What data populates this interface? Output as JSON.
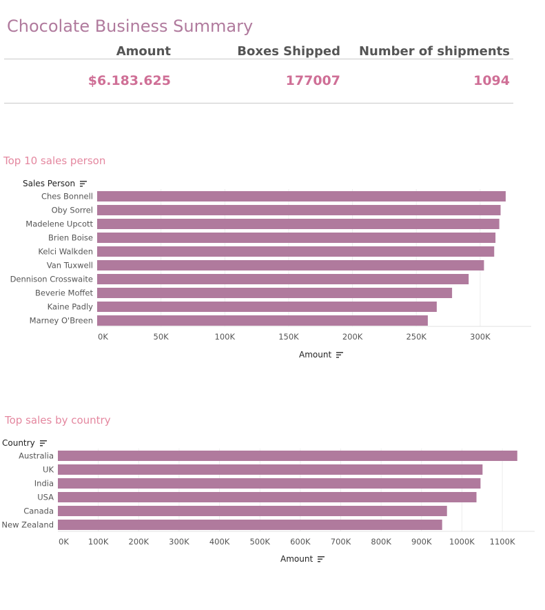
{
  "title": "Chocolate Business Summary",
  "kpis": {
    "amount_label": "Amount",
    "amount_value": "$6.183.625",
    "boxes_label": "Boxes Shipped",
    "boxes_value": "177007",
    "shipments_label": "Number of shipments",
    "shipments_value": "1094"
  },
  "colors": {
    "bar": "#b07a9d",
    "title": "#b07a9d",
    "section_title": "#e4879f",
    "kpi_value": "#cf6f96"
  },
  "icons": {
    "sort": "sort-descending-icon"
  },
  "chart_data": [
    {
      "type": "bar",
      "orientation": "horizontal",
      "title": "Top 10 sales person",
      "dimension_label": "Sales Person",
      "xlabel": "Amount",
      "categories": [
        "Ches Bonnell",
        "Oby Sorrel",
        "Madelene Upcott",
        "Brien Boise",
        "Kelci Walkden",
        "Van Tuxwell",
        "Dennison Crosswaite",
        "Beverie Moffet",
        "Kaine Padly",
        "Marney O'Breen"
      ],
      "values": [
        320000,
        316000,
        315000,
        312000,
        311000,
        303000,
        291000,
        278000,
        266000,
        259000
      ],
      "xlim": [
        0,
        340000
      ],
      "ticks": [
        0,
        50000,
        100000,
        150000,
        200000,
        250000,
        300000
      ],
      "tick_labels": [
        "0K",
        "50K",
        "100K",
        "150K",
        "200K",
        "250K",
        "300K"
      ],
      "grid": true
    },
    {
      "type": "bar",
      "orientation": "horizontal",
      "title": "Top sales by country",
      "dimension_label": "Country",
      "xlabel": "Amount",
      "categories": [
        "Australia",
        "UK",
        "India",
        "USA",
        "Canada",
        "New Zealand"
      ],
      "values": [
        1137000,
        1051000,
        1046000,
        1036000,
        963000,
        951000
      ],
      "xlim": [
        0,
        1180000
      ],
      "ticks": [
        0,
        100000,
        200000,
        300000,
        400000,
        500000,
        600000,
        700000,
        800000,
        900000,
        1000000,
        1100000
      ],
      "tick_labels": [
        "0K",
        "100K",
        "200K",
        "300K",
        "400K",
        "500K",
        "600K",
        "700K",
        "800K",
        "900K",
        "1000K",
        "1100K"
      ],
      "grid": true
    }
  ]
}
